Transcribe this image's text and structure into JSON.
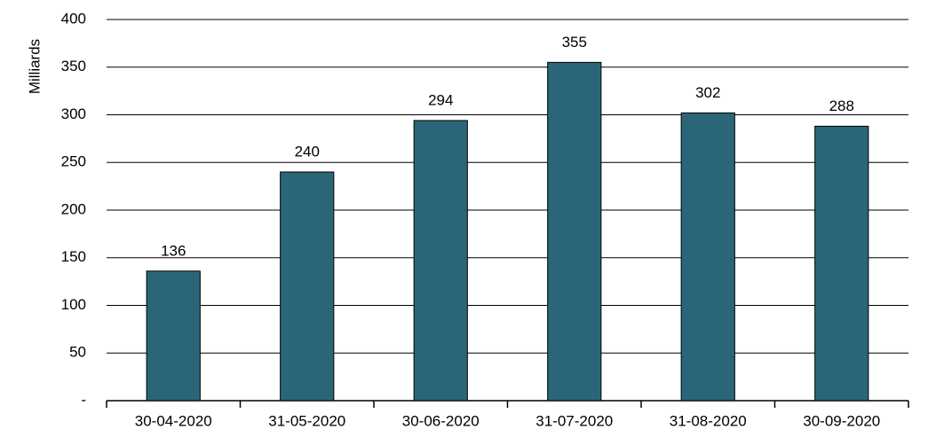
{
  "chart_data": {
    "type": "bar",
    "y_label": "Milliards",
    "categories": [
      "30-04-2020",
      "31-05-2020",
      "30-06-2020",
      "31-07-2020",
      "31-08-2020",
      "30-09-2020"
    ],
    "values": [
      136,
      240,
      294,
      355,
      302,
      288
    ],
    "color": "#2a6678",
    "ylim": [
      0,
      400
    ],
    "yticks": [
      {
        "value": 0,
        "label": "-"
      },
      50,
      100,
      150,
      200,
      250,
      300,
      350,
      400
    ],
    "grid": true
  }
}
